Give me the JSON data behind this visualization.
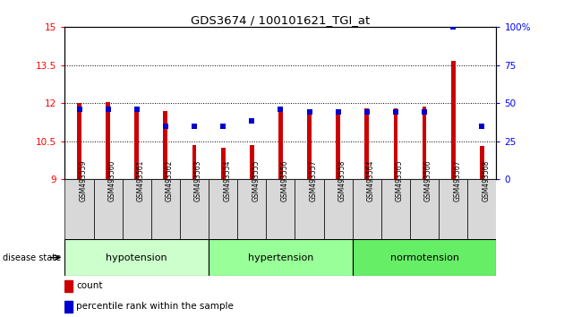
{
  "title": "GDS3674 / 100101621_TGI_at",
  "samples": [
    "GSM493559",
    "GSM493560",
    "GSM493561",
    "GSM493562",
    "GSM493563",
    "GSM493554",
    "GSM493555",
    "GSM493556",
    "GSM493557",
    "GSM493558",
    "GSM493564",
    "GSM493565",
    "GSM493566",
    "GSM493567",
    "GSM493568"
  ],
  "red_values": [
    12.0,
    12.05,
    11.75,
    11.7,
    10.35,
    10.25,
    10.35,
    11.7,
    11.7,
    11.7,
    11.8,
    11.8,
    11.85,
    13.65,
    10.3
  ],
  "blue_values": [
    46,
    46,
    46,
    35,
    35,
    35,
    38,
    46,
    44,
    44,
    44,
    44,
    44,
    100,
    35
  ],
  "groups": [
    {
      "label": "hypotension",
      "start": 0,
      "end": 5,
      "color": "#ccffcc"
    },
    {
      "label": "hypertension",
      "start": 5,
      "end": 10,
      "color": "#99ff99"
    },
    {
      "label": "normotension",
      "start": 10,
      "end": 15,
      "color": "#66ee66"
    }
  ],
  "ylim_left": [
    9,
    15
  ],
  "ylim_right": [
    0,
    100
  ],
  "yticks_left": [
    9,
    10.5,
    12,
    13.5,
    15
  ],
  "yticks_right": [
    0,
    25,
    50,
    75,
    100
  ],
  "ytick_labels_right": [
    "0",
    "25",
    "50",
    "75",
    "100%"
  ],
  "grid_values": [
    10.5,
    12.0,
    13.5
  ],
  "bar_color": "#cc0000",
  "dot_color": "#0000cc",
  "label_count": "count",
  "label_percentile": "percentile rank within the sample",
  "disease_label": "disease state"
}
